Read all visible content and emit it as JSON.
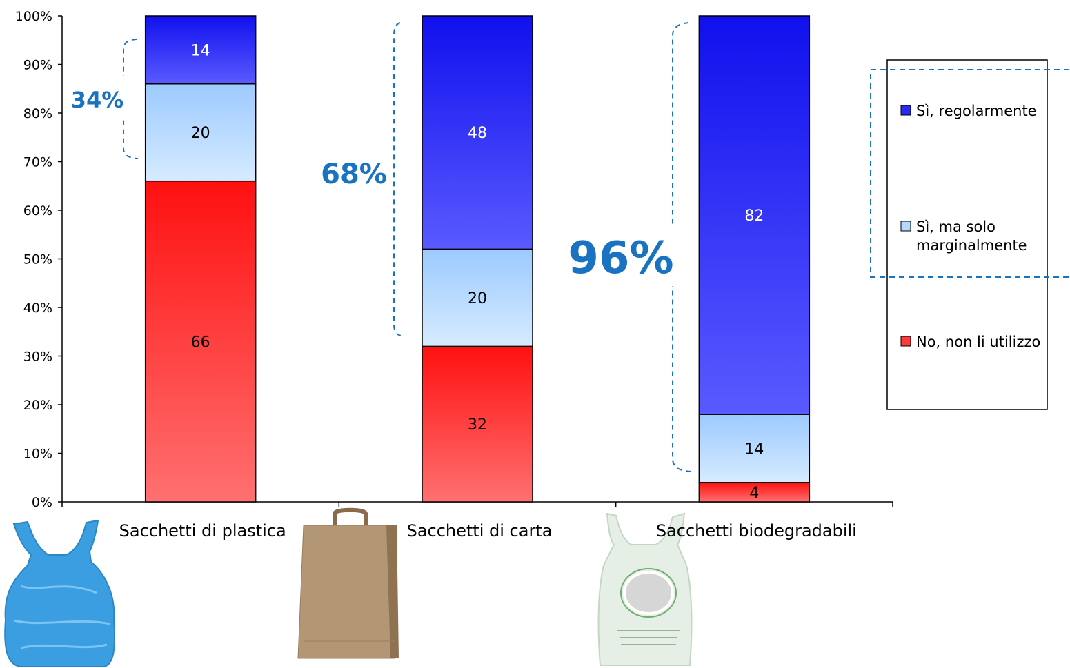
{
  "chart_data": {
    "type": "bar",
    "stacked": true,
    "percent": true,
    "categories": [
      "Sacchetti di plastica",
      "Sacchetti di carta",
      "Sacchetti biodegradabili"
    ],
    "series": [
      {
        "name": "No, non li utilizzo",
        "values": [
          66,
          32,
          4
        ],
        "color_top": "#ff1010",
        "color_bottom": "#ff7070",
        "label_color": "#000000"
      },
      {
        "name": "Sì, ma solo marginalmente",
        "values": [
          20,
          20,
          14
        ],
        "color_top": "#9ccaff",
        "color_bottom": "#d6ebff",
        "label_color": "#000000"
      },
      {
        "name": "Sì, regolarmente",
        "values": [
          14,
          48,
          82
        ],
        "color_top": "#1010ee",
        "color_bottom": "#5a5aff",
        "label_color": "#ffffff"
      }
    ],
    "y_ticks": [
      "0%",
      "10%",
      "20%",
      "30%",
      "40%",
      "50%",
      "60%",
      "70%",
      "80%",
      "90%",
      "100%"
    ],
    "ylim": [
      0,
      100
    ],
    "legend_position": "right",
    "annotations": [
      "34%",
      "68%",
      "96%"
    ]
  },
  "legend": {
    "items": [
      {
        "label_lines": [
          "Sì, regolarmente"
        ],
        "color": "#2a2af5"
      },
      {
        "label_lines": [
          "Sì, ma solo",
          "marginalmente"
        ],
        "color": "#b4d8ff"
      },
      {
        "label_lines": [
          "No, non li utilizzo"
        ],
        "color": "#ff3a3a"
      }
    ]
  },
  "images": [
    "blue-plastic-bag",
    "brown-paper-bag",
    "biodegradable-bag"
  ]
}
